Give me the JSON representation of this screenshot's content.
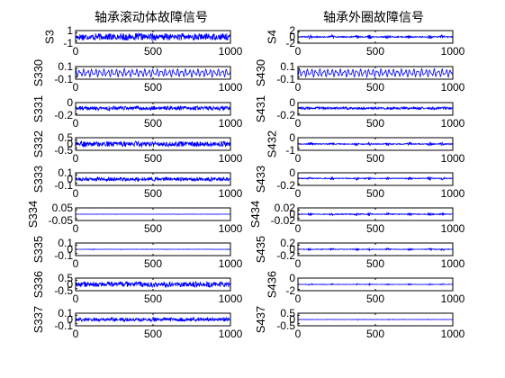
{
  "figure": {
    "titles": [
      "轴承滚动体故障信号",
      "轴承外圈故障信号"
    ]
  },
  "colors": {
    "signal": "#0000ff",
    "axes": "#000000",
    "background": "#ffffff"
  },
  "chart_data": [
    {
      "type": "line",
      "column": 0,
      "row": 0,
      "ylabel": "S3",
      "xlim": [
        0,
        1000
      ],
      "xticks": [
        0,
        500,
        1000
      ],
      "ylim": [
        -1.5,
        1.5
      ],
      "yticks": [
        -1,
        1
      ],
      "ytick_labels": [
        "-1",
        "1"
      ],
      "amplitude": 0.9,
      "style": "dense"
    },
    {
      "type": "line",
      "column": 0,
      "row": 1,
      "ylabel": "S330",
      "xlim": [
        0,
        1000
      ],
      "xticks": [
        0,
        500,
        1000
      ],
      "ylim": [
        -0.15,
        0.15
      ],
      "yticks": [
        -0.1,
        0.1
      ],
      "ytick_labels": [
        "-0.1",
        "0.1"
      ],
      "amplitude": 0.1,
      "style": "smooth"
    },
    {
      "type": "line",
      "column": 0,
      "row": 2,
      "ylabel": "S331",
      "xlim": [
        0,
        1000
      ],
      "xticks": [
        0,
        500,
        1000
      ],
      "ylim": [
        -0.25,
        0.2
      ],
      "yticks": [
        -0.2,
        0
      ],
      "ytick_labels": [
        "-0.2",
        "0"
      ],
      "amplitude": 0.08,
      "style": "dense"
    },
    {
      "type": "line",
      "column": 0,
      "row": 3,
      "ylabel": "S332",
      "xlim": [
        0,
        1000
      ],
      "xticks": [
        0,
        500,
        1000
      ],
      "ylim": [
        -0.75,
        0.75
      ],
      "yticks": [
        -0.5,
        0,
        0.5
      ],
      "ytick_labels": [
        "-0.5",
        "0",
        "0.5"
      ],
      "amplitude": 0.35,
      "style": "dense"
    },
    {
      "type": "line",
      "column": 0,
      "row": 4,
      "ylabel": "S333",
      "xlim": [
        0,
        1000
      ],
      "xticks": [
        0,
        500,
        1000
      ],
      "ylim": [
        -0.15,
        0.15
      ],
      "yticks": [
        -0.1,
        0,
        0.1
      ],
      "ytick_labels": [
        "-0.1",
        "0",
        "0.1"
      ],
      "amplitude": 0.05,
      "style": "dense"
    },
    {
      "type": "line",
      "column": 0,
      "row": 5,
      "ylabel": "S334",
      "xlim": [
        0,
        1000
      ],
      "xticks": [
        0,
        500,
        1000
      ],
      "ylim": [
        -0.07,
        0.07
      ],
      "yticks": [
        -0.05,
        0.05
      ],
      "ytick_labels": [
        "-0.05",
        "0.05"
      ],
      "amplitude": 0.004,
      "style": "flat"
    },
    {
      "type": "line",
      "column": 0,
      "row": 6,
      "ylabel": "S335",
      "xlim": [
        0,
        1000
      ],
      "xticks": [
        0,
        500,
        1000
      ],
      "ylim": [
        -0.15,
        0.15
      ],
      "yticks": [
        -0.1,
        0,
        0.1
      ],
      "ytick_labels": [
        "-0.1",
        "0",
        "0.1"
      ],
      "amplitude": 0.012,
      "style": "flat"
    },
    {
      "type": "line",
      "column": 0,
      "row": 7,
      "ylabel": "S336",
      "xlim": [
        0,
        1000
      ],
      "xticks": [
        0,
        500,
        1000
      ],
      "ylim": [
        -0.75,
        0.75
      ],
      "yticks": [
        -0.5,
        0,
        0.5
      ],
      "ytick_labels": [
        "-0.5",
        "0",
        "0.5"
      ],
      "amplitude": 0.35,
      "style": "dense"
    },
    {
      "type": "line",
      "column": 0,
      "row": 8,
      "ylabel": "S337",
      "xlim": [
        0,
        1000
      ],
      "xticks": [
        0,
        500,
        1000
      ],
      "ylim": [
        -0.15,
        0.15
      ],
      "yticks": [
        -0.1,
        0,
        0.1
      ],
      "ytick_labels": [
        "-0.1",
        "0",
        "0.1"
      ],
      "amplitude": 0.05,
      "style": "dense"
    },
    {
      "type": "line",
      "column": 1,
      "row": 0,
      "ylabel": "S4",
      "xlim": [
        0,
        1000
      ],
      "xticks": [
        0,
        500,
        1000
      ],
      "ylim": [
        -2.5,
        2.5
      ],
      "yticks": [
        -2,
        0,
        2
      ],
      "ytick_labels": [
        "-2",
        "0",
        "2"
      ],
      "amplitude": 0.9,
      "style": "bursts"
    },
    {
      "type": "line",
      "column": 1,
      "row": 1,
      "ylabel": "S430",
      "xlim": [
        0,
        1000
      ],
      "xticks": [
        0,
        500,
        1000
      ],
      "ylim": [
        -0.15,
        0.15
      ],
      "yticks": [
        -0.1,
        0.1
      ],
      "ytick_labels": [
        "-0.1",
        "0.1"
      ],
      "amplitude": 0.1,
      "style": "smooth"
    },
    {
      "type": "line",
      "column": 1,
      "row": 2,
      "ylabel": "S431",
      "xlim": [
        0,
        1000
      ],
      "xticks": [
        0,
        500,
        1000
      ],
      "ylim": [
        -0.25,
        0.2
      ],
      "yticks": [
        -0.2,
        0
      ],
      "ytick_labels": [
        "-0.2",
        "0"
      ],
      "amplitude": 0.05,
      "style": "dense"
    },
    {
      "type": "line",
      "column": 1,
      "row": 3,
      "ylabel": "S432",
      "xlim": [
        0,
        1000
      ],
      "xticks": [
        0,
        500,
        1000
      ],
      "ylim": [
        -1.5,
        1.5
      ],
      "yticks": [
        -1,
        0
      ],
      "ytick_labels": [
        "-1",
        "0"
      ],
      "amplitude": 0.45,
      "style": "bursts"
    },
    {
      "type": "line",
      "column": 1,
      "row": 4,
      "ylabel": "S433",
      "xlim": [
        0,
        1000
      ],
      "xticks": [
        0,
        500,
        1000
      ],
      "ylim": [
        -0.25,
        0.2
      ],
      "yticks": [
        -0.2,
        0
      ],
      "ytick_labels": [
        "-0.2",
        "0"
      ],
      "amplitude": 0.06,
      "style": "bursts"
    },
    {
      "type": "line",
      "column": 1,
      "row": 5,
      "ylabel": "S434",
      "xlim": [
        0,
        1000
      ],
      "xticks": [
        0,
        500,
        1000
      ],
      "ylim": [
        -0.03,
        0.03
      ],
      "yticks": [
        -0.02,
        0,
        0.02
      ],
      "ytick_labels": [
        "-0.02",
        "0",
        "0.02"
      ],
      "amplitude": 0.008,
      "style": "bursts"
    },
    {
      "type": "line",
      "column": 1,
      "row": 6,
      "ylabel": "S435",
      "xlim": [
        0,
        1000
      ],
      "xticks": [
        0,
        500,
        1000
      ],
      "ylim": [
        -0.3,
        0.3
      ],
      "yticks": [
        -0.2,
        0,
        0.2
      ],
      "ytick_labels": [
        "-0.2",
        "0",
        "0.2"
      ],
      "amplitude": 0.06,
      "style": "bursts"
    },
    {
      "type": "line",
      "column": 1,
      "row": 7,
      "ylabel": "S436",
      "xlim": [
        0,
        1000
      ],
      "xticks": [
        0,
        500,
        1000
      ],
      "ylim": [
        -2.5,
        2.5
      ],
      "yticks": [
        -2,
        0
      ],
      "ytick_labels": [
        "-2",
        "0"
      ],
      "amplitude": 0.35,
      "style": "bursts"
    },
    {
      "type": "line",
      "column": 1,
      "row": 8,
      "ylabel": "S437",
      "xlim": [
        0,
        1000
      ],
      "xticks": [
        0,
        500,
        1000
      ],
      "ylim": [
        -0.75,
        0.75
      ],
      "yticks": [
        -0.5,
        0,
        0.5
      ],
      "ytick_labels": [
        "-0.5",
        "0",
        "0.5"
      ],
      "amplitude": 0.08,
      "style": "flat"
    }
  ]
}
